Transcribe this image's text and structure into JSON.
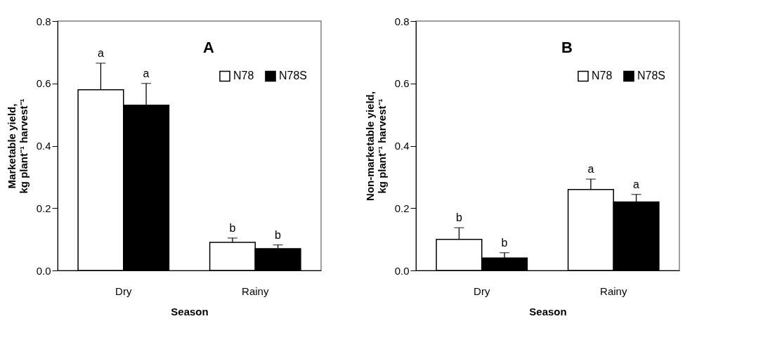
{
  "chart_data": [
    {
      "type": "bar",
      "title": "A",
      "xlabel": "Season",
      "ylabel": "Marketable yield,\nkg plant⁻¹ harvest⁻¹",
      "categories": [
        "Dry",
        "Rainy"
      ],
      "series": [
        {
          "name": "N78",
          "color": "#ffffff",
          "values": [
            0.58,
            0.09
          ],
          "errors": [
            [
              0.58,
              0.665
            ],
            [
              0.09,
              0.104
            ]
          ],
          "value_labels": [
            "a",
            "b"
          ]
        },
        {
          "name": "N78S",
          "color": "#000000",
          "values": [
            0.53,
            0.07
          ],
          "errors": [
            [
              0.53,
              0.6
            ],
            [
              0.07,
              0.082
            ]
          ],
          "value_labels": [
            "a",
            "b"
          ]
        }
      ],
      "ylim": [
        0,
        0.8
      ],
      "yticks": [
        {
          "value": 0,
          "label": "0.0"
        },
        0.2,
        0.4,
        0.6,
        0.8
      ],
      "grid": false,
      "legend": "top right"
    },
    {
      "type": "bar",
      "title": "B",
      "xlabel": "Season",
      "ylabel": "Non-marketable yield,\nkg plant⁻¹ harvest⁻¹",
      "categories": [
        "Dry",
        "Rainy"
      ],
      "series": [
        {
          "name": "N78",
          "color": "#ffffff",
          "values": [
            0.1,
            0.26
          ],
          "errors": [
            [
              0.1,
              0.137
            ],
            [
              0.26,
              0.293
            ]
          ],
          "value_labels": [
            "b",
            "a"
          ]
        },
        {
          "name": "N78S",
          "color": "#000000",
          "values": [
            0.04,
            0.22
          ],
          "errors": [
            [
              0.04,
              0.057
            ],
            [
              0.22,
              0.244
            ]
          ],
          "value_labels": [
            "b",
            "a"
          ]
        }
      ],
      "ylim": [
        0,
        0.8
      ],
      "yticks": [
        {
          "value": 0,
          "label": "0.0"
        },
        0.2,
        0.4,
        0.6,
        0.8
      ],
      "grid": false,
      "legend": "top right"
    }
  ]
}
